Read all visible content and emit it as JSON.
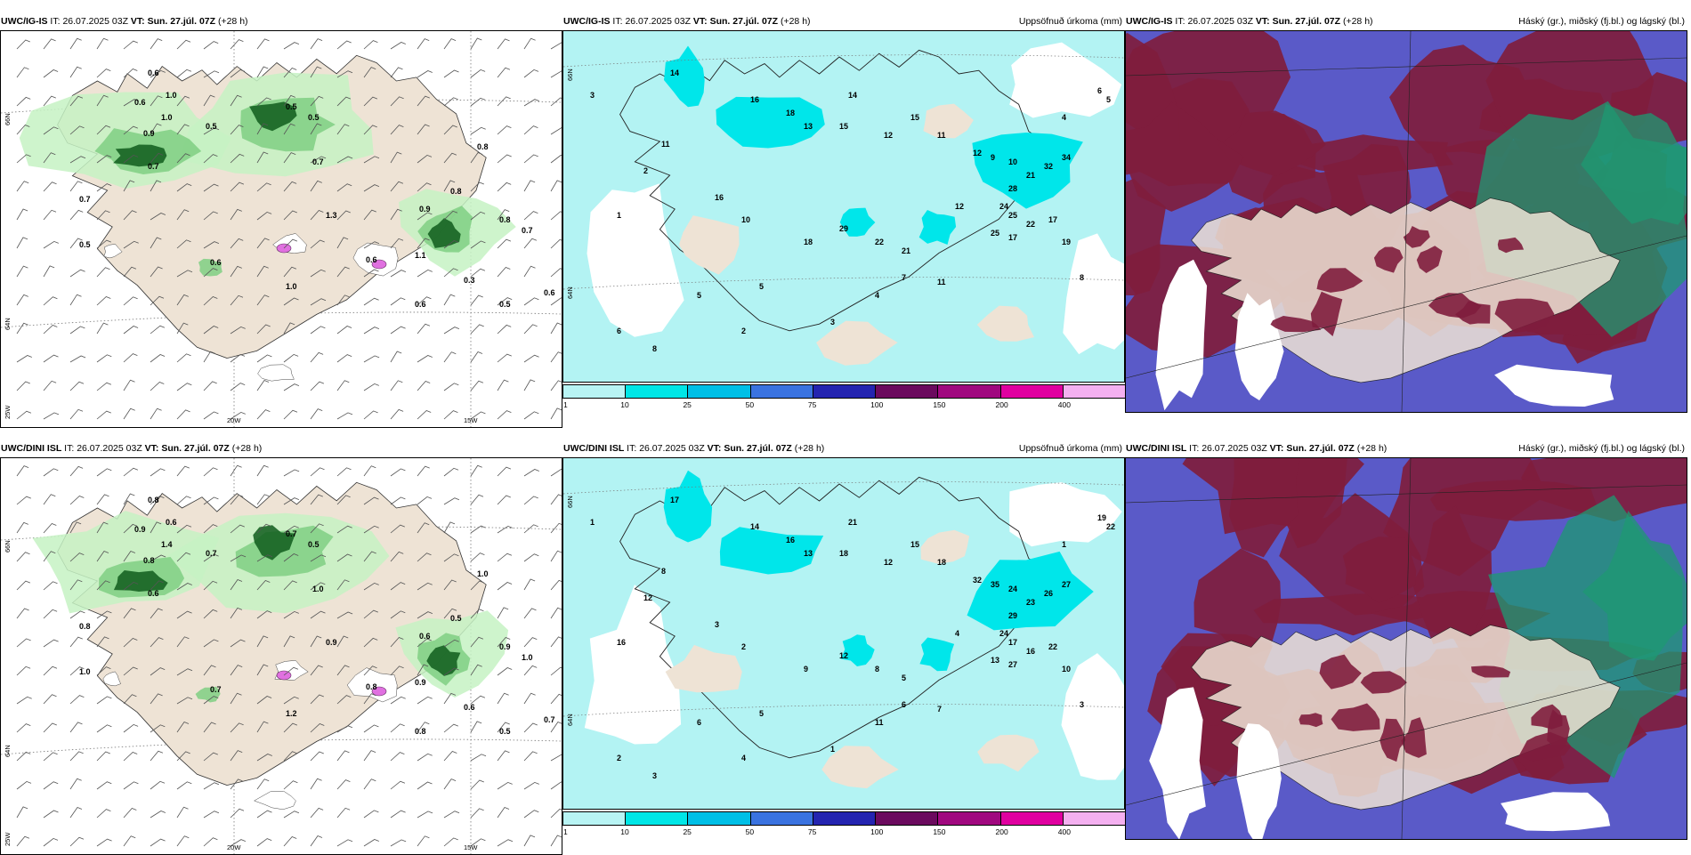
{
  "rows": [
    {
      "model": "UWC/IG-IS",
      "wind": {
        "it_label": "IT:",
        "it_value": "26.07.2025 03Z",
        "vt_label": "VT:",
        "vt_value": "Sun. 27.júl. 07Z",
        "lead": "(+28 h)",
        "lat_labels": [
          "66N",
          "64N",
          "25W"
        ],
        "lon_labels": [
          "20W",
          "15W"
        ],
        "values": [
          "0.6",
          "1.0",
          "0.6",
          "0.9",
          "1.0",
          "0.5",
          "0.5",
          "0.8",
          "0.7",
          "0.5",
          "0.6",
          "1.1",
          "1.0",
          "0.6",
          "0.3",
          "0.8",
          "0.7",
          "0.6",
          "0.5",
          "0.7",
          "0.8",
          "0.5",
          "0.7",
          "1.3",
          "0.6",
          "0.9"
        ]
      },
      "precip": {
        "it_label": "IT:",
        "it_value": "26.07.2025 03Z",
        "vt_label": "VT:",
        "vt_value": "Sun. 27.júl. 07Z",
        "lead": "(+28 h)",
        "title": "Uppsöfnuð úrkoma (mm)",
        "lat_labels": [
          "66N",
          "64N"
        ],
        "values": [
          "3",
          "14",
          "16",
          "18",
          "13",
          "15",
          "14",
          "12",
          "15",
          "11",
          "12",
          "9",
          "10",
          "21",
          "32",
          "34",
          "28",
          "24",
          "25",
          "22",
          "17",
          "17",
          "25",
          "19",
          "29",
          "18",
          "22",
          "21",
          "12",
          "16",
          "10",
          "7",
          "11",
          "4",
          "3",
          "2",
          "8",
          "6",
          "5",
          "5",
          "11",
          "2",
          "1",
          "6",
          "5",
          "4",
          "8"
        ]
      },
      "cloud": {
        "it_label": "IT:",
        "it_value": "26.07.2025 03Z",
        "vt_label": "VT:",
        "vt_value": "Sun. 27.júl. 07Z",
        "lead": "(+28 h)",
        "title": "Háský (gr.), miðský (fj.bl.) og lágský (bl.)"
      }
    },
    {
      "model": "UWC/DINI ISL",
      "wind": {
        "it_label": "IT:",
        "it_value": "26.07.2025 03Z",
        "vt_label": "VT:",
        "vt_value": "Sun. 27.júl. 07Z",
        "lead": "(+28 h)",
        "lat_labels": [
          "66N",
          "64N",
          "25W"
        ],
        "lon_labels": [
          "20W",
          "15W"
        ],
        "values": [
          "0.8",
          "0.6",
          "0.9",
          "0.8",
          "1.4",
          "0.7",
          "0.5",
          "1.0",
          "0.8",
          "1.0",
          "0.7",
          "0.9",
          "1.2",
          "0.8",
          "0.6",
          "0.5",
          "1.0",
          "0.7",
          "0.5",
          "0.6",
          "0.9",
          "0.7",
          "1.0",
          "0.9",
          "0.8",
          "0.6"
        ]
      },
      "precip": {
        "it_label": "IT:",
        "it_value": "26.07.2025 03Z",
        "vt_label": "VT:",
        "vt_value": "Sun. 27.júl. 07Z",
        "lead": "(+28 h)",
        "title": "Uppsöfnuð úrkoma (mm)",
        "lat_labels": [
          "66N",
          "64N"
        ],
        "values": [
          "1",
          "17",
          "14",
          "16",
          "13",
          "18",
          "21",
          "12",
          "15",
          "18",
          "32",
          "35",
          "24",
          "23",
          "26",
          "27",
          "29",
          "24",
          "17",
          "16",
          "22",
          "27",
          "13",
          "10",
          "12",
          "9",
          "8",
          "5",
          "4",
          "3",
          "2",
          "6",
          "7",
          "11",
          "1",
          "4",
          "3",
          "2",
          "6",
          "5",
          "8",
          "12",
          "16",
          "19",
          "22",
          "1",
          "3"
        ]
      },
      "cloud": {
        "it_label": "IT:",
        "it_value": "26.07.2025 03Z",
        "vt_label": "VT:",
        "vt_value": "Sun. 27.júl. 07Z",
        "lead": "(+28 h)",
        "title": "Háský (gr.), miðský (fj.bl.) og lágský (bl.)"
      }
    }
  ],
  "colorbar": {
    "ticks": [
      "1",
      "10",
      "25",
      "50",
      "75",
      "100",
      "150",
      "200",
      "400"
    ],
    "colors": [
      "#b8f4f4",
      "#00e6e6",
      "#00bfe6",
      "#3a73e0",
      "#2424b0",
      "#6b0a5e",
      "#a0087f",
      "#e000a0",
      "#f4b0f0"
    ]
  },
  "colors": {
    "land": "#eee3d5",
    "precip_sea": "#b3f3f3",
    "precip_mid": "#00e6ea",
    "wind_light": "#c6f2c3",
    "wind_mid": "#7fcf82",
    "wind_dark": "#0f5c1c",
    "cloud_high": "#7f1d3d",
    "cloud_mid": "#5a5ac8",
    "cloud_low": "#1d9a72"
  }
}
